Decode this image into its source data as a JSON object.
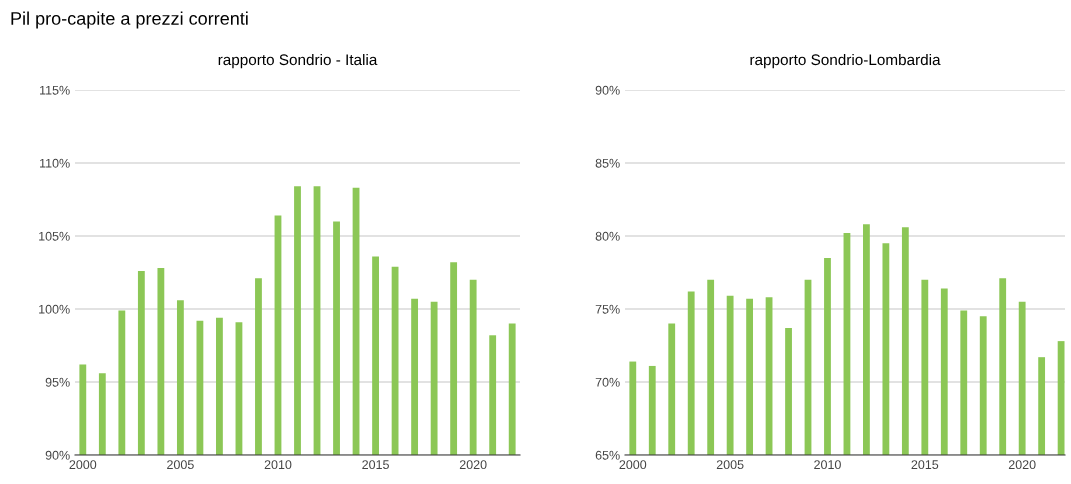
{
  "chart_data": [
    {
      "type": "bar",
      "title": "Pil pro-capite a prezzi correnti",
      "subtitle": "rapporto Sondrio - Italia",
      "x": [
        2000,
        2001,
        2002,
        2003,
        2004,
        2005,
        2006,
        2007,
        2008,
        2009,
        2010,
        2011,
        2012,
        2013,
        2014,
        2015,
        2016,
        2017,
        2018,
        2019,
        2020,
        2021,
        2022
      ],
      "series": [
        {
          "color": "#8cc756",
          "values": [
            96.2,
            95.6,
            99.9,
            102.6,
            102.8,
            100.6,
            99.2,
            99.4,
            99.1,
            102.1,
            106.4,
            108.4,
            108.4,
            106.0,
            108.3,
            103.6,
            102.9,
            100.7,
            100.5,
            103.2,
            102.0,
            98.2,
            99.0
          ]
        }
      ],
      "xlim": [
        1999.6,
        2022.4
      ],
      "xticks": [
        2000,
        2005,
        2010,
        2015,
        2020
      ],
      "ylim": [
        90,
        115
      ],
      "yticks": [
        {
          "value": 90,
          "label": "90%"
        },
        {
          "value": 95,
          "label": "95%"
        },
        {
          "value": 100,
          "label": "100%"
        },
        {
          "value": 105,
          "label": "105%"
        },
        {
          "value": 110,
          "label": "110%"
        },
        {
          "value": 115,
          "label": "115%"
        }
      ],
      "grid": "y",
      "legend": false
    },
    {
      "type": "bar",
      "title": "rapporto Sondrio-Lombardia",
      "x": [
        2000,
        2001,
        2002,
        2003,
        2004,
        2005,
        2006,
        2007,
        2008,
        2009,
        2010,
        2011,
        2012,
        2013,
        2014,
        2015,
        2016,
        2017,
        2018,
        2019,
        2020,
        2021,
        2022
      ],
      "series": [
        {
          "color": "#8cc756",
          "values": [
            71.4,
            71.1,
            74.0,
            76.2,
            77.0,
            75.9,
            75.7,
            75.8,
            73.7,
            77.0,
            78.5,
            80.2,
            80.8,
            79.5,
            80.6,
            77.0,
            76.4,
            74.9,
            74.5,
            77.1,
            75.5,
            71.7,
            72.8
          ]
        }
      ],
      "xlim": [
        1999.6,
        2022.2
      ],
      "xticks": [
        2000,
        2005,
        2010,
        2015,
        2020
      ],
      "ylim": [
        65,
        90
      ],
      "yticks": [
        {
          "value": 65,
          "label": "65%"
        },
        {
          "value": 70,
          "label": "70%"
        },
        {
          "value": 75,
          "label": "75%"
        },
        {
          "value": 80,
          "label": "80%"
        },
        {
          "value": 85,
          "label": "85%"
        },
        {
          "value": 90,
          "label": "90%"
        }
      ],
      "grid": "y",
      "legend": false
    }
  ]
}
